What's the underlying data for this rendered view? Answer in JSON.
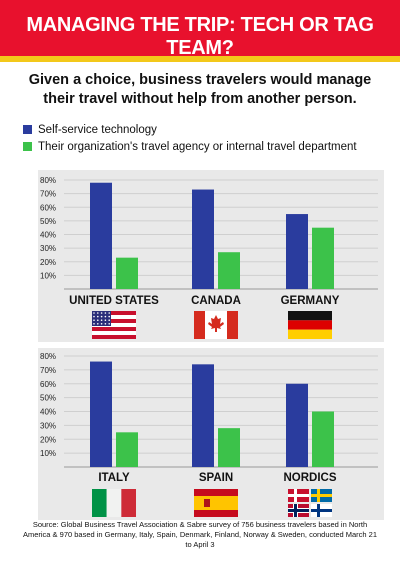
{
  "header": {
    "title": "MANAGING THE TRIP: TECH OR TAG TEAM?",
    "subtitle": "Given a choice, business travelers would manage their travel without help from another person."
  },
  "legend": [
    {
      "label": "Self-service technology",
      "color": "#2a3c9e"
    },
    {
      "label": "Their organization's travel agency or internal travel department",
      "color": "#3cc24a"
    }
  ],
  "colors": {
    "banner": "#e8112d",
    "stripe": "#f3c81a",
    "gridline": "#cfcfcf",
    "panel": "#e9e9e9"
  },
  "chart_data": [
    {
      "type": "bar",
      "categories": [
        "UNITED STATES",
        "CANADA",
        "GERMANY"
      ],
      "series": [
        {
          "name": "Self-service technology",
          "values": [
            78,
            73,
            55
          ]
        },
        {
          "name": "Their organization's travel agency or internal travel department",
          "values": [
            23,
            27,
            45
          ]
        }
      ],
      "yticks": [
        "80%",
        "70%",
        "60%",
        "50%",
        "40%",
        "30%",
        "20%",
        "10%"
      ],
      "ylim": [
        0,
        80
      ],
      "flags": [
        "us-flag-icon",
        "canada-flag-icon",
        "germany-flag-icon"
      ]
    },
    {
      "type": "bar",
      "categories": [
        "ITALY",
        "SPAIN",
        "NORDICS"
      ],
      "series": [
        {
          "name": "Self-service technology",
          "values": [
            76,
            74,
            60
          ]
        },
        {
          "name": "Their organization's travel agency or internal travel department",
          "values": [
            25,
            28,
            40
          ]
        }
      ],
      "yticks": [
        "80%",
        "70%",
        "60%",
        "50%",
        "40%",
        "30%",
        "20%",
        "10%"
      ],
      "ylim": [
        0,
        80
      ],
      "flags": [
        "italy-flag-icon",
        "spain-flag-icon",
        "nordics-flags-icon"
      ]
    }
  ],
  "source": "Source: Global Business Travel Association & Sabre survey of 756 business travelers based in North America & 970 based in Germany, Italy, Spain, Denmark, Finland, Norway & Sweden, conducted March 21 to April 3"
}
